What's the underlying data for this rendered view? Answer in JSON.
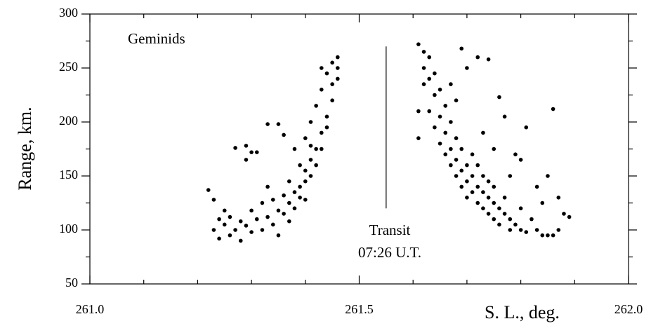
{
  "chart_data": {
    "type": "scatter",
    "x_label": "S. L., deg.",
    "y_label": "Range, km.",
    "annotations": {
      "label": "Geminids",
      "transit": "Transit",
      "transit_time": "07:26 U.T."
    },
    "transit_line": {
      "x": 261.55,
      "y": [
        120,
        270
      ]
    },
    "xlim": [
      261.0,
      262.0
    ],
    "xticks": [
      {
        "value": 261,
        "label": "261.0"
      },
      261.5,
      {
        "value": 262,
        "label": "262.0"
      }
    ],
    "xminor_ticks": [
      261.1,
      261.2,
      261.3,
      261.4,
      261.6,
      261.7,
      261.8,
      261.9
    ],
    "ylim": [
      50,
      300
    ],
    "yticks": [
      50,
      100,
      150,
      200,
      250,
      300
    ],
    "yminor_ticks": [
      75,
      125,
      175,
      225,
      275
    ],
    "color": "#000000",
    "series": [
      {
        "name": null,
        "color": "#000000",
        "x": [
          261.22,
          261.23,
          261.23,
          261.24,
          261.24,
          261.25,
          261.25,
          261.26,
          261.26,
          261.27,
          261.27,
          261.28,
          261.28,
          261.29,
          261.29,
          261.3,
          261.3,
          261.31,
          261.31,
          261.32,
          261.32,
          261.33,
          261.33,
          261.34,
          261.34,
          261.35,
          261.35,
          261.35,
          261.36,
          261.36,
          261.36,
          261.37,
          261.37,
          261.37,
          261.38,
          261.38,
          261.38,
          261.39,
          261.39,
          261.39,
          261.4,
          261.4,
          261.4,
          261.4,
          261.41,
          261.41,
          261.41,
          261.42,
          261.42,
          261.42,
          261.43,
          261.43,
          261.43,
          261.44,
          261.44,
          261.44,
          261.45,
          261.45,
          261.46,
          261.46,
          261.46,
          261.45,
          261.43,
          261.41,
          261.33,
          261.29,
          261.3,
          261.61,
          261.62,
          261.62,
          261.62,
          261.63,
          261.63,
          261.63,
          261.64,
          261.64,
          261.64,
          261.61,
          261.61,
          261.65,
          261.65,
          261.65,
          261.66,
          261.66,
          261.66,
          261.67,
          261.67,
          261.67,
          261.68,
          261.68,
          261.68,
          261.69,
          261.69,
          261.69,
          261.7,
          261.7,
          261.7,
          261.71,
          261.71,
          261.71,
          261.72,
          261.72,
          261.72,
          261.73,
          261.73,
          261.73,
          261.74,
          261.74,
          261.74,
          261.75,
          261.75,
          261.75,
          261.76,
          261.76,
          261.77,
          261.77,
          261.78,
          261.78,
          261.79,
          261.8,
          261.8,
          261.81,
          261.82,
          261.83,
          261.84,
          261.85,
          261.86,
          261.87,
          261.88,
          261.89,
          261.87,
          261.85,
          261.86,
          261.81,
          261.79,
          261.77,
          261.76,
          261.74,
          261.72,
          261.69,
          261.7,
          261.67,
          261.68,
          261.73,
          261.8,
          261.83,
          261.84,
          261.78,
          261.75
        ],
        "values": [
          137,
          128,
          100,
          110,
          92,
          118,
          105,
          95,
          112,
          100,
          176,
          108,
          90,
          104,
          165,
          98,
          118,
          110,
          172,
          100,
          125,
          112,
          140,
          105,
          128,
          118,
          198,
          95,
          132,
          115,
          188,
          125,
          145,
          108,
          135,
          120,
          175,
          140,
          130,
          160,
          155,
          145,
          185,
          128,
          165,
          150,
          200,
          175,
          160,
          215,
          190,
          175,
          230,
          205,
          245,
          195,
          220,
          255,
          240,
          250,
          260,
          235,
          250,
          178,
          198,
          178,
          172,
          272,
          265,
          250,
          235,
          260,
          240,
          210,
          245,
          225,
          195,
          210,
          185,
          230,
          205,
          180,
          215,
          190,
          170,
          200,
          175,
          160,
          185,
          165,
          150,
          175,
          155,
          140,
          160,
          145,
          130,
          150,
          135,
          170,
          140,
          125,
          160,
          135,
          120,
          150,
          130,
          115,
          145,
          125,
          110,
          140,
          120,
          105,
          115,
          130,
          110,
          100,
          105,
          100,
          120,
          98,
          110,
          100,
          95,
          95,
          95,
          100,
          115,
          112,
          130,
          150,
          212,
          195,
          170,
          205,
          223,
          258,
          260,
          268,
          250,
          235,
          220,
          190,
          165,
          140,
          125,
          150,
          175
        ]
      }
    ]
  }
}
